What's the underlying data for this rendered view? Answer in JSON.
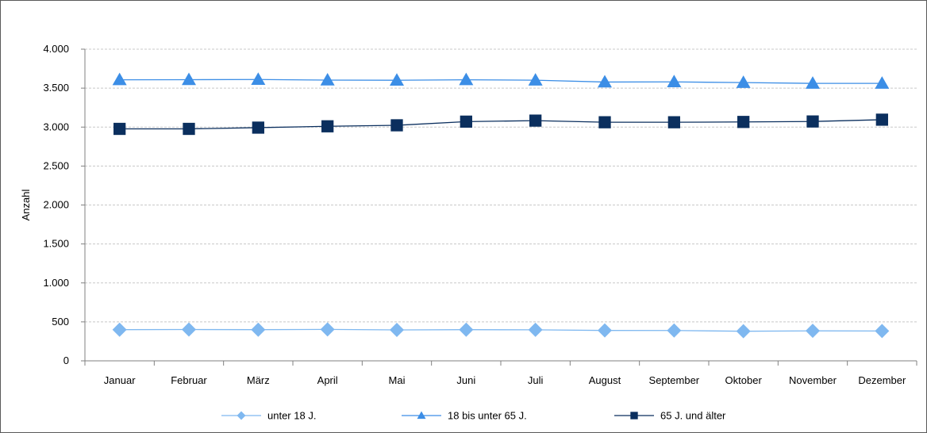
{
  "chart_data": {
    "type": "line",
    "ylabel": "Anzahl",
    "xlabel": "",
    "ylim": [
      0,
      4000
    ],
    "yticks": [
      0,
      500,
      1000,
      1500,
      2000,
      2500,
      3000,
      3500,
      4000
    ],
    "ytick_labels": [
      "0",
      "500",
      "1.000",
      "1.500",
      "2.000",
      "2.500",
      "3.000",
      "3.500",
      "4.000"
    ],
    "grid": true,
    "legend_position": "bottom",
    "categories": [
      "Januar",
      "Februar",
      "März",
      "April",
      "Mai",
      "Juni",
      "Juli",
      "August",
      "September",
      "Oktober",
      "November",
      "Dezember"
    ],
    "series": [
      {
        "name": "unter 18 J.",
        "marker": "diamond",
        "color": "#7fb8f0",
        "values": [
          400,
          402,
          400,
          403,
          397,
          400,
          398,
          390,
          389,
          380,
          385,
          383
        ]
      },
      {
        "name": "18 bis unter 65 J.",
        "marker": "triangle",
        "color": "#3c8ee6",
        "values": [
          3607,
          3608,
          3611,
          3603,
          3601,
          3607,
          3602,
          3578,
          3580,
          3571,
          3561,
          3561
        ]
      },
      {
        "name": "65 J. und älter",
        "marker": "square",
        "color": "#0b2f5e",
        "values": [
          2977,
          2977,
          2993,
          3010,
          3023,
          3070,
          3083,
          3062,
          3062,
          3066,
          3072,
          3095
        ]
      }
    ]
  }
}
